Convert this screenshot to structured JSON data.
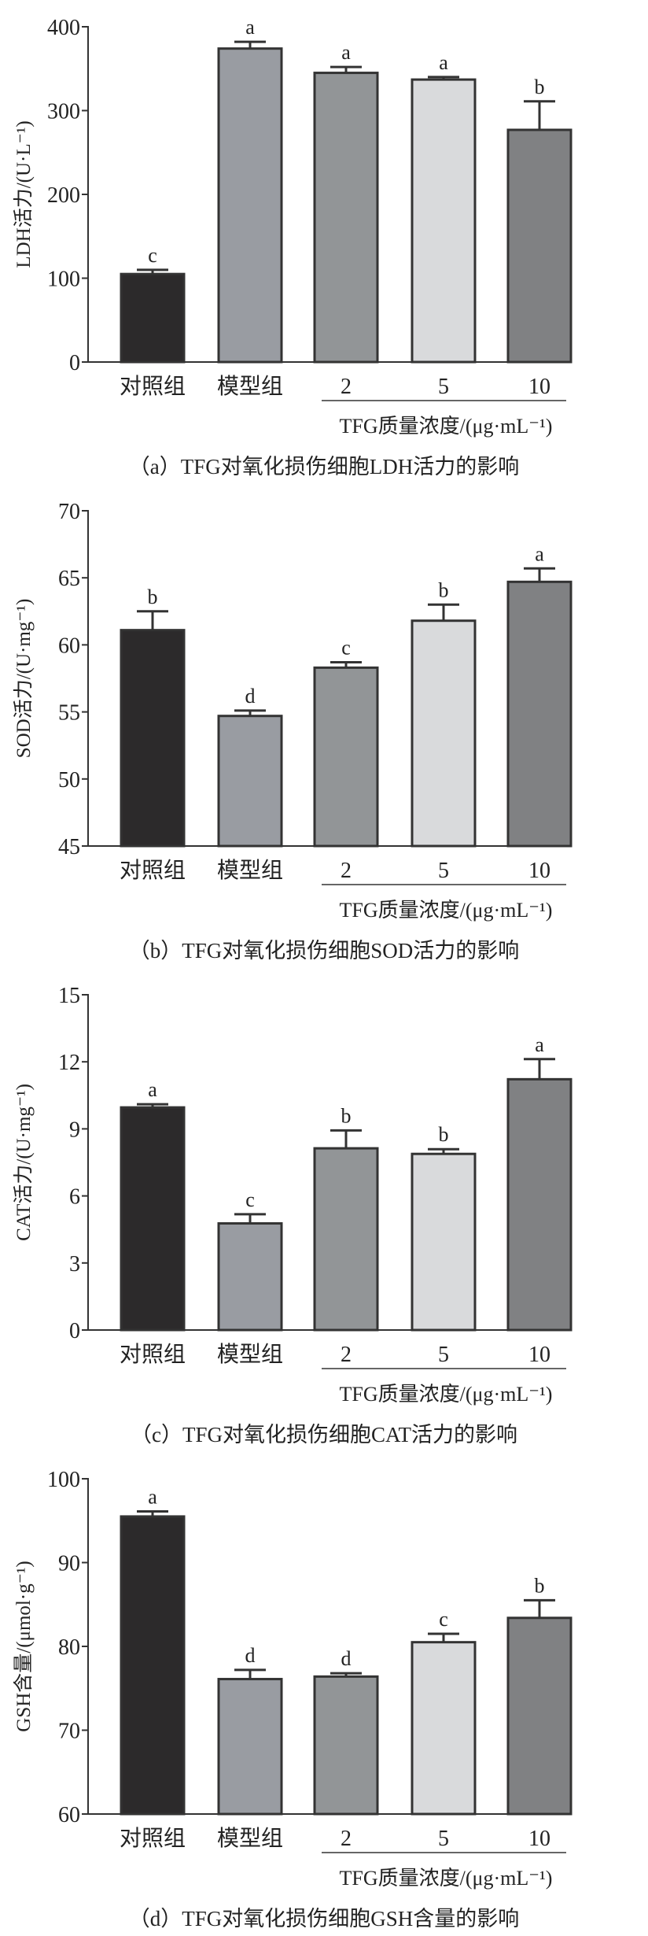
{
  "shared": {
    "categories": [
      "对照组",
      "模型组",
      "2",
      "5",
      "10"
    ],
    "x_group_title": "TFG质量浓度/(μg·mL⁻¹)",
    "bar_colors": [
      "#2c2a2b",
      "#999ca2",
      "#929597",
      "#d9dadc",
      "#808183"
    ]
  },
  "chart_data": [
    {
      "type": "bar",
      "caption": "（a）TFG对氧化损伤细胞LDH活力的影响",
      "ylabel": "LDH活力/(U·L⁻¹)",
      "ylim": [
        0,
        400
      ],
      "yticks": [
        0,
        100,
        200,
        300,
        400
      ],
      "categories": [
        "对照组",
        "模型组",
        "2",
        "5",
        "10"
      ],
      "values": [
        105,
        374,
        345,
        337,
        277
      ],
      "error_upper": [
        110,
        382,
        352,
        340,
        311
      ],
      "letters": [
        "c",
        "a",
        "a",
        "a",
        "b"
      ]
    },
    {
      "type": "bar",
      "caption": "（b）TFG对氧化损伤细胞SOD活力的影响",
      "ylabel": "SOD活力/(U·mg⁻¹)",
      "ylim": [
        45,
        70
      ],
      "yticks": [
        45,
        50,
        55,
        60,
        65,
        70
      ],
      "categories": [
        "对照组",
        "模型组",
        "2",
        "5",
        "10"
      ],
      "values": [
        61.1,
        54.7,
        58.3,
        61.8,
        64.7
      ],
      "error_upper": [
        62.5,
        55.1,
        58.7,
        63.0,
        65.7
      ],
      "letters": [
        "b",
        "d",
        "c",
        "b",
        "a"
      ]
    },
    {
      "type": "bar",
      "caption": "（c）TFG对氧化损伤细胞CAT活力的影响",
      "ylabel": "CAT活力/(U·mg⁻¹)",
      "ylim": [
        0,
        15
      ],
      "yticks": [
        0,
        3,
        6,
        9,
        12,
        15
      ],
      "categories": [
        "对照组",
        "模型组",
        "2",
        "5",
        "10"
      ],
      "values": [
        9.96,
        4.77,
        8.13,
        7.88,
        11.22
      ],
      "error_upper": [
        10.1,
        5.18,
        8.93,
        8.09,
        12.12
      ],
      "letters": [
        "a",
        "c",
        "b",
        "b",
        "a"
      ]
    },
    {
      "type": "bar",
      "caption": "（d）TFG对氧化损伤细胞GSH含量的影响",
      "ylabel": "GSH含量/(μmol·g⁻¹)",
      "ylim": [
        60,
        100
      ],
      "yticks": [
        60,
        70,
        80,
        90,
        100
      ],
      "categories": [
        "对照组",
        "模型组",
        "2",
        "5",
        "10"
      ],
      "values": [
        95.5,
        76.1,
        76.4,
        80.5,
        83.4
      ],
      "error_upper": [
        96.1,
        77.2,
        76.8,
        81.5,
        85.5
      ],
      "letters": [
        "a",
        "d",
        "d",
        "c",
        "b"
      ]
    }
  ]
}
